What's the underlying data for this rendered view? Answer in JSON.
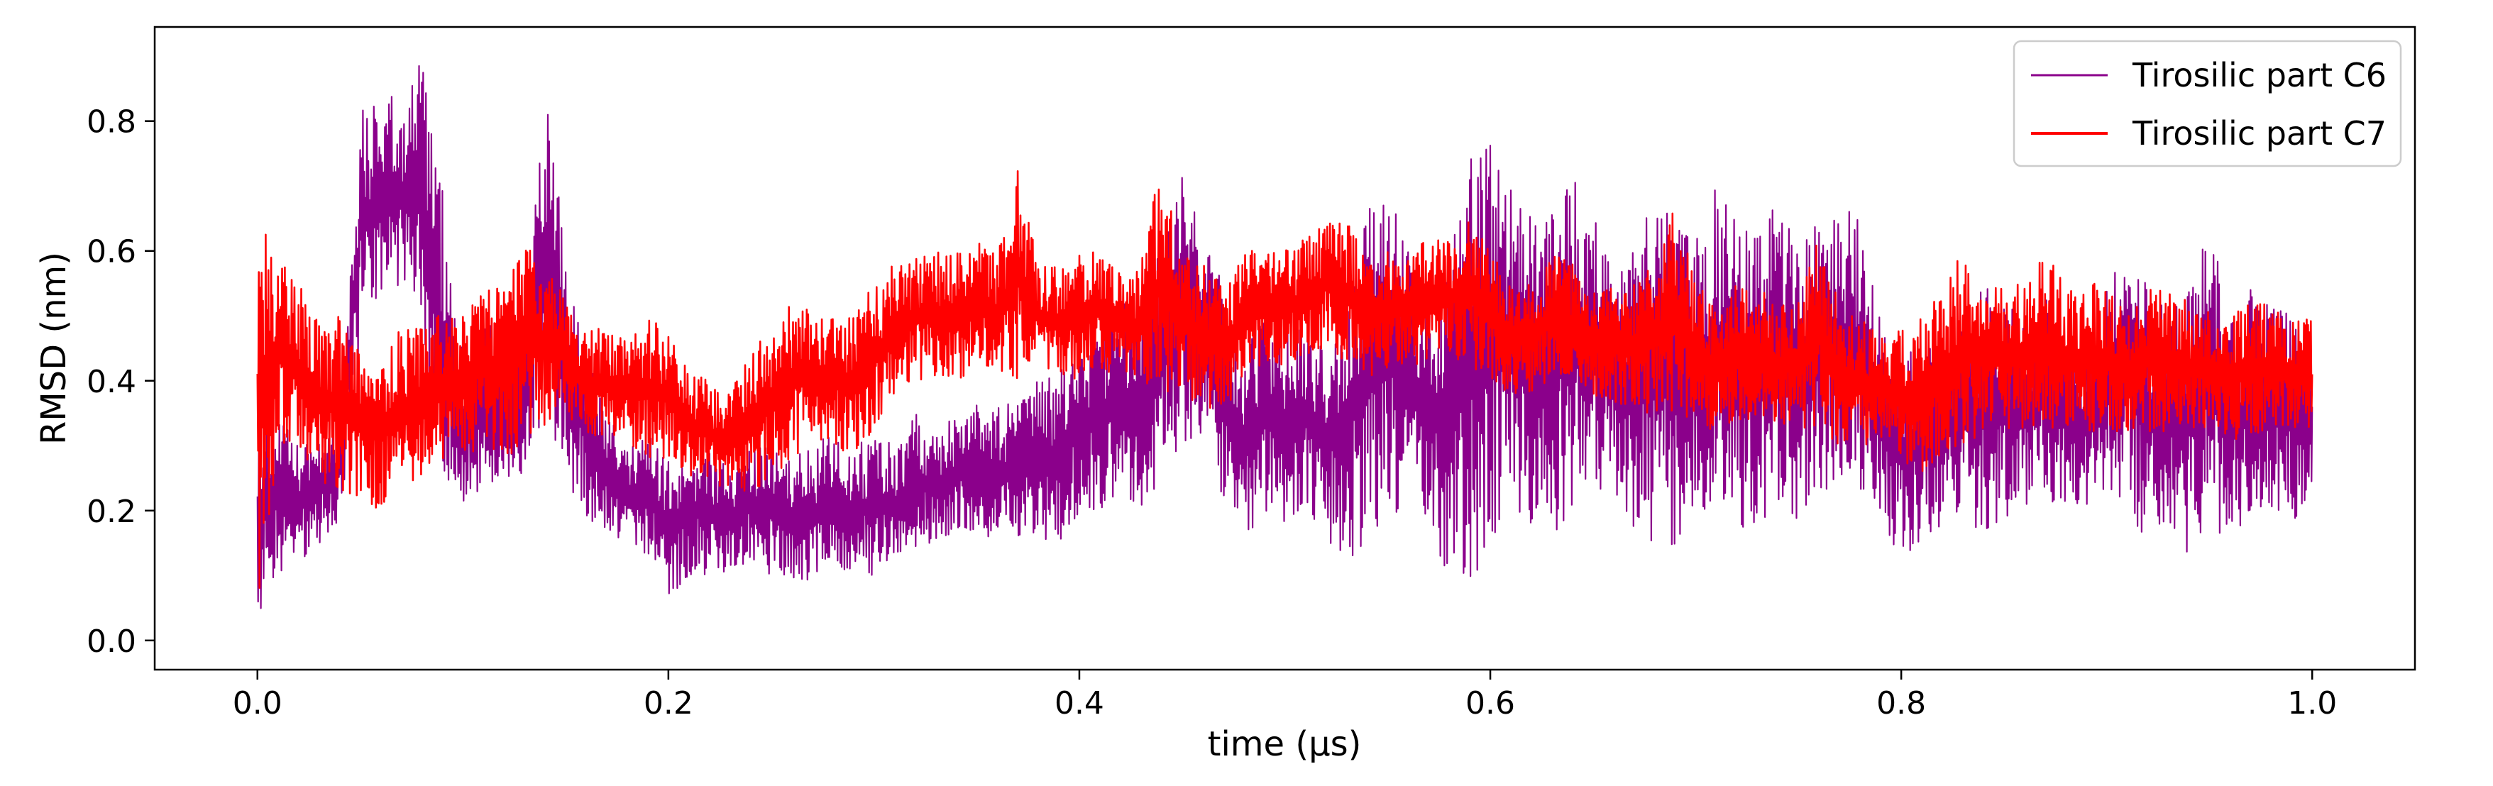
{
  "chart_data": {
    "type": "line",
    "title": "",
    "xlabel": "time (µs)",
    "ylabel": "RMSD (nm)",
    "xlim": [
      -0.05,
      1.05
    ],
    "ylim": [
      -0.045,
      0.945
    ],
    "xticks": [
      0.0,
      0.2,
      0.4,
      0.6,
      0.8,
      1.0
    ],
    "xtick_labels": [
      "0.0",
      "0.2",
      "0.4",
      "0.6",
      "0.8",
      "1.0"
    ],
    "yticks": [
      0.0,
      0.2,
      0.4,
      0.6,
      0.8
    ],
    "ytick_labels": [
      "0.0",
      "0.2",
      "0.4",
      "0.6",
      "0.8"
    ],
    "grid": false,
    "legend": "top-right",
    "series": [
      {
        "name": "Tirosilic part C6",
        "color": "#8b008b",
        "x": [
          0.0,
          0.01,
          0.02,
          0.03,
          0.04,
          0.05,
          0.06,
          0.07,
          0.08,
          0.09,
          0.1,
          0.11,
          0.12,
          0.13,
          0.14,
          0.15,
          0.16,
          0.17,
          0.18,
          0.19,
          0.2,
          0.21,
          0.22,
          0.23,
          0.24,
          0.25,
          0.26,
          0.27,
          0.28,
          0.29,
          0.3,
          0.31,
          0.32,
          0.33,
          0.34,
          0.35,
          0.36,
          0.37,
          0.38,
          0.39,
          0.4,
          0.41,
          0.42,
          0.43,
          0.44,
          0.45,
          0.46,
          0.47,
          0.48,
          0.49,
          0.5,
          0.51,
          0.52,
          0.53,
          0.54,
          0.55,
          0.56,
          0.57,
          0.58,
          0.59,
          0.6,
          0.61,
          0.62,
          0.63,
          0.64,
          0.65,
          0.66,
          0.67,
          0.68,
          0.69,
          0.7,
          0.71,
          0.72,
          0.73,
          0.74,
          0.75,
          0.76,
          0.77,
          0.78,
          0.79,
          0.8,
          0.81,
          0.82,
          0.83,
          0.84,
          0.85,
          0.86,
          0.87,
          0.88,
          0.89,
          0.9,
          0.91,
          0.92,
          0.93,
          0.94,
          0.95,
          0.96,
          0.97,
          0.98,
          0.99,
          1.0
        ],
        "y_min": [
          0.0,
          0.1,
          0.12,
          0.15,
          0.18,
          0.45,
          0.52,
          0.55,
          0.5,
          0.22,
          0.2,
          0.22,
          0.25,
          0.22,
          0.35,
          0.25,
          0.18,
          0.16,
          0.15,
          0.13,
          0.06,
          0.1,
          0.1,
          0.1,
          0.12,
          0.1,
          0.08,
          0.09,
          0.1,
          0.1,
          0.1,
          0.12,
          0.14,
          0.15,
          0.16,
          0.15,
          0.15,
          0.15,
          0.14,
          0.14,
          0.18,
          0.2,
          0.22,
          0.2,
          0.25,
          0.3,
          0.32,
          0.2,
          0.15,
          0.2,
          0.18,
          0.2,
          0.15,
          0.12,
          0.15,
          0.2,
          0.18,
          0.15,
          0.1,
          0.08,
          0.15,
          0.2,
          0.18,
          0.15,
          0.2,
          0.25,
          0.2,
          0.15,
          0.12,
          0.14,
          0.2,
          0.2,
          0.18,
          0.15,
          0.2,
          0.18,
          0.22,
          0.25,
          0.22,
          0.18,
          0.12,
          0.15,
          0.18,
          0.2,
          0.15,
          0.18,
          0.2,
          0.22,
          0.2,
          0.18,
          0.22,
          0.2,
          0.15,
          0.18,
          0.12,
          0.15,
          0.14,
          0.18,
          0.2,
          0.18,
          0.22
        ],
        "y_max": [
          0.4,
          0.35,
          0.3,
          0.32,
          0.35,
          0.82,
          0.85,
          0.83,
          0.9,
          0.7,
          0.45,
          0.48,
          0.5,
          0.52,
          0.85,
          0.6,
          0.45,
          0.35,
          0.3,
          0.32,
          0.28,
          0.3,
          0.3,
          0.28,
          0.3,
          0.3,
          0.28,
          0.3,
          0.32,
          0.3,
          0.32,
          0.3,
          0.35,
          0.33,
          0.35,
          0.38,
          0.36,
          0.38,
          0.4,
          0.42,
          0.48,
          0.5,
          0.52,
          0.55,
          0.6,
          0.72,
          0.65,
          0.55,
          0.45,
          0.5,
          0.48,
          0.5,
          0.45,
          0.55,
          0.68,
          0.72,
          0.6,
          0.55,
          0.6,
          0.75,
          0.78,
          0.7,
          0.65,
          0.7,
          0.72,
          0.65,
          0.6,
          0.62,
          0.7,
          0.65,
          0.62,
          0.7,
          0.65,
          0.62,
          0.68,
          0.62,
          0.65,
          0.68,
          0.66,
          0.5,
          0.45,
          0.45,
          0.48,
          0.5,
          0.55,
          0.52,
          0.5,
          0.55,
          0.5,
          0.48,
          0.55,
          0.62,
          0.55,
          0.5,
          0.55,
          0.65,
          0.5,
          0.55,
          0.52,
          0.5,
          0.5
        ]
      },
      {
        "name": "Tirosilic part C7",
        "color": "#ff0000",
        "x": [
          0.0,
          0.01,
          0.02,
          0.03,
          0.04,
          0.05,
          0.06,
          0.07,
          0.08,
          0.09,
          0.1,
          0.11,
          0.12,
          0.13,
          0.14,
          0.15,
          0.16,
          0.17,
          0.18,
          0.19,
          0.2,
          0.21,
          0.22,
          0.23,
          0.24,
          0.25,
          0.26,
          0.27,
          0.28,
          0.29,
          0.3,
          0.31,
          0.32,
          0.33,
          0.34,
          0.35,
          0.36,
          0.37,
          0.38,
          0.39,
          0.4,
          0.41,
          0.42,
          0.43,
          0.44,
          0.45,
          0.46,
          0.47,
          0.48,
          0.49,
          0.5,
          0.51,
          0.52,
          0.53,
          0.54,
          0.55,
          0.56,
          0.57,
          0.58,
          0.59,
          0.6,
          0.61,
          0.62,
          0.63,
          0.64,
          0.65,
          0.66,
          0.67,
          0.68,
          0.69,
          0.7,
          0.71,
          0.72,
          0.73,
          0.74,
          0.75,
          0.76,
          0.77,
          0.78,
          0.79,
          0.8,
          0.81,
          0.82,
          0.83,
          0.84,
          0.85,
          0.86,
          0.87,
          0.88,
          0.89,
          0.9,
          0.91,
          0.92,
          0.93,
          0.94,
          0.95,
          0.96,
          0.97,
          0.98,
          0.99,
          1.0
        ],
        "y_min": [
          0.0,
          0.3,
          0.28,
          0.25,
          0.22,
          0.22,
          0.2,
          0.22,
          0.25,
          0.27,
          0.28,
          0.3,
          0.28,
          0.3,
          0.32,
          0.35,
          0.3,
          0.32,
          0.3,
          0.28,
          0.28,
          0.25,
          0.24,
          0.22,
          0.22,
          0.25,
          0.28,
          0.3,
          0.3,
          0.28,
          0.32,
          0.38,
          0.4,
          0.4,
          0.4,
          0.42,
          0.4,
          0.4,
          0.42,
          0.4,
          0.4,
          0.42,
          0.4,
          0.38,
          0.38,
          0.38,
          0.36,
          0.35,
          0.4,
          0.42,
          0.42,
          0.44,
          0.45,
          0.42,
          0.4,
          0.42,
          0.42,
          0.42,
          0.44,
          0.42,
          0.4,
          0.38,
          0.38,
          0.4,
          0.4,
          0.38,
          0.36,
          0.35,
          0.35,
          0.34,
          0.34,
          0.32,
          0.34,
          0.34,
          0.33,
          0.33,
          0.32,
          0.3,
          0.3,
          0.3,
          0.26,
          0.26,
          0.28,
          0.3,
          0.32,
          0.32,
          0.32,
          0.32,
          0.32,
          0.32,
          0.32,
          0.32,
          0.32,
          0.32,
          0.32,
          0.32,
          0.3,
          0.32,
          0.32,
          0.32,
          0.32
        ],
        "y_max": [
          0.7,
          0.6,
          0.55,
          0.5,
          0.5,
          0.45,
          0.45,
          0.48,
          0.5,
          0.5,
          0.52,
          0.55,
          0.55,
          0.62,
          0.58,
          0.55,
          0.48,
          0.48,
          0.46,
          0.5,
          0.48,
          0.42,
          0.4,
          0.38,
          0.45,
          0.48,
          0.52,
          0.52,
          0.5,
          0.5,
          0.55,
          0.58,
          0.6,
          0.6,
          0.6,
          0.62,
          0.6,
          0.73,
          0.58,
          0.58,
          0.6,
          0.6,
          0.58,
          0.58,
          0.74,
          0.6,
          0.58,
          0.55,
          0.6,
          0.6,
          0.6,
          0.62,
          0.65,
          0.65,
          0.6,
          0.6,
          0.6,
          0.62,
          0.62,
          0.65,
          0.6,
          0.55,
          0.55,
          0.6,
          0.58,
          0.55,
          0.55,
          0.55,
          0.58,
          0.68,
          0.55,
          0.52,
          0.55,
          0.55,
          0.52,
          0.52,
          0.63,
          0.52,
          0.5,
          0.48,
          0.48,
          0.5,
          0.55,
          0.6,
          0.55,
          0.55,
          0.55,
          0.6,
          0.55,
          0.55,
          0.55,
          0.5,
          0.55,
          0.55,
          0.52,
          0.52,
          0.5,
          0.52,
          0.52,
          0.5,
          0.5
        ]
      }
    ]
  }
}
